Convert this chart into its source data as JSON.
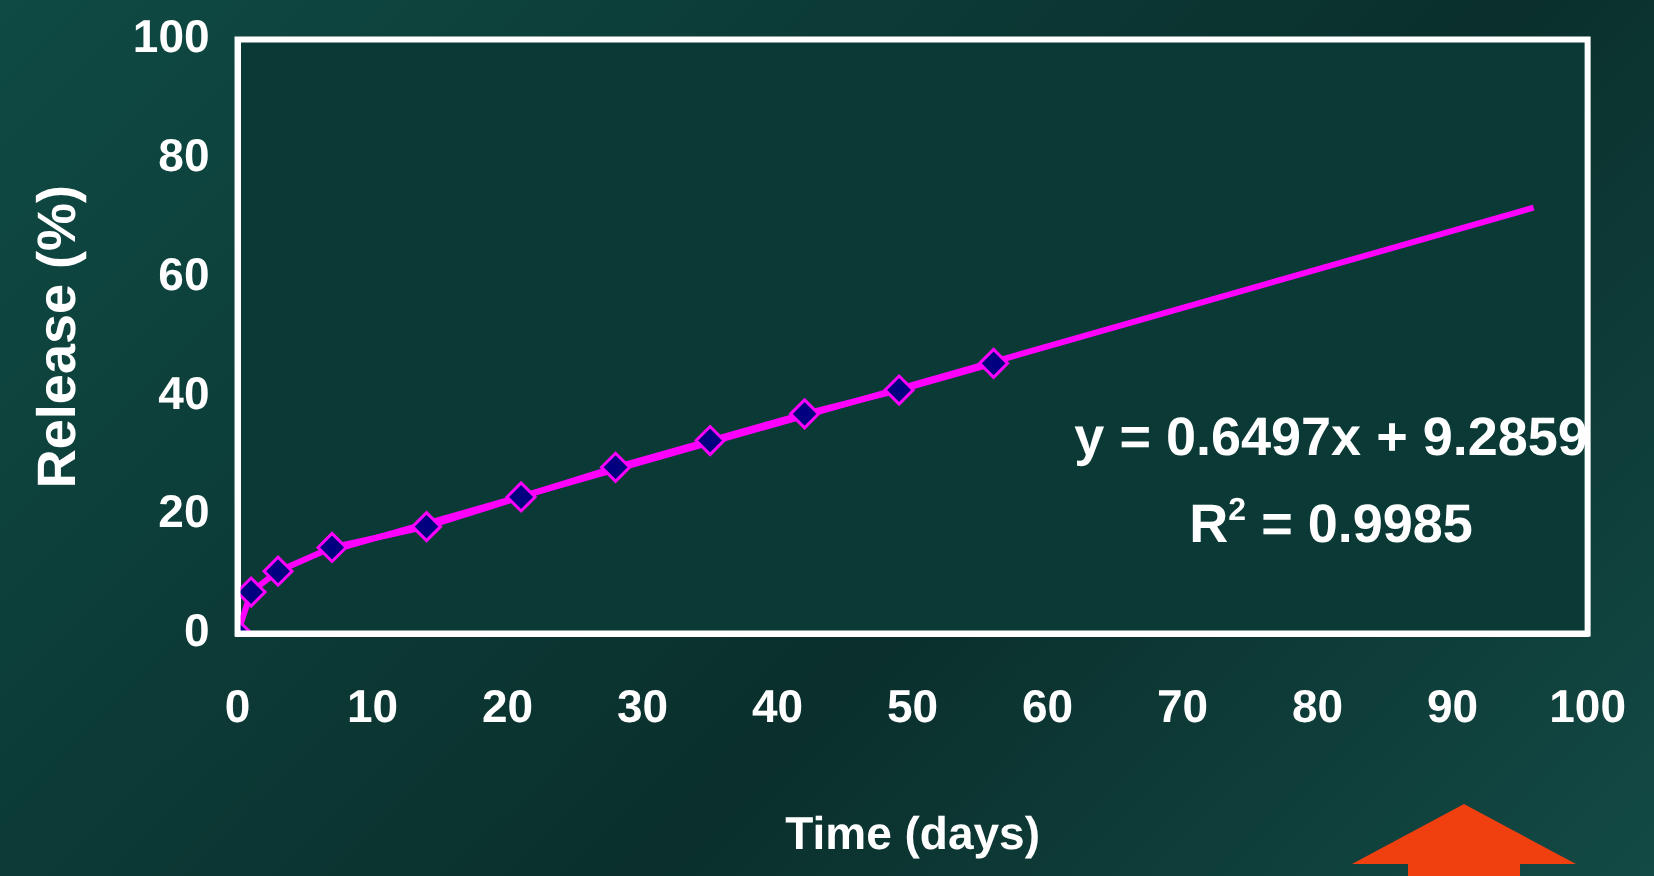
{
  "chart_data": {
    "type": "line",
    "xlabel": "Time (days)",
    "ylabel": "Release (%)",
    "series": [
      {
        "type": "line",
        "color": "#ff00ff",
        "marker": "diamond",
        "x": [
          0,
          1,
          3,
          7,
          14,
          21,
          28,
          35,
          42,
          49,
          56
        ],
        "values": [
          0,
          7,
          10.5,
          14.5,
          18,
          23,
          28,
          32.5,
          37,
          41,
          45.5
        ]
      },
      {
        "type": "line",
        "color": "#ff00ff",
        "marker": "none",
        "x": [
          7,
          96
        ],
        "values": [
          14,
          71.7
        ]
      }
    ],
    "xlim": [
      0,
      100
    ],
    "xticks": [
      0,
      10,
      20,
      30,
      40,
      50,
      60,
      70,
      80,
      90,
      100
    ],
    "ylim": [
      0,
      100
    ],
    "yticks": [
      0,
      20,
      40,
      60,
      80,
      100
    ],
    "grid": false,
    "legend": false,
    "annotations": [
      "y = 0.6497x + 9.2859",
      "R$^{2}$ = 0.9985"
    ]
  }
}
